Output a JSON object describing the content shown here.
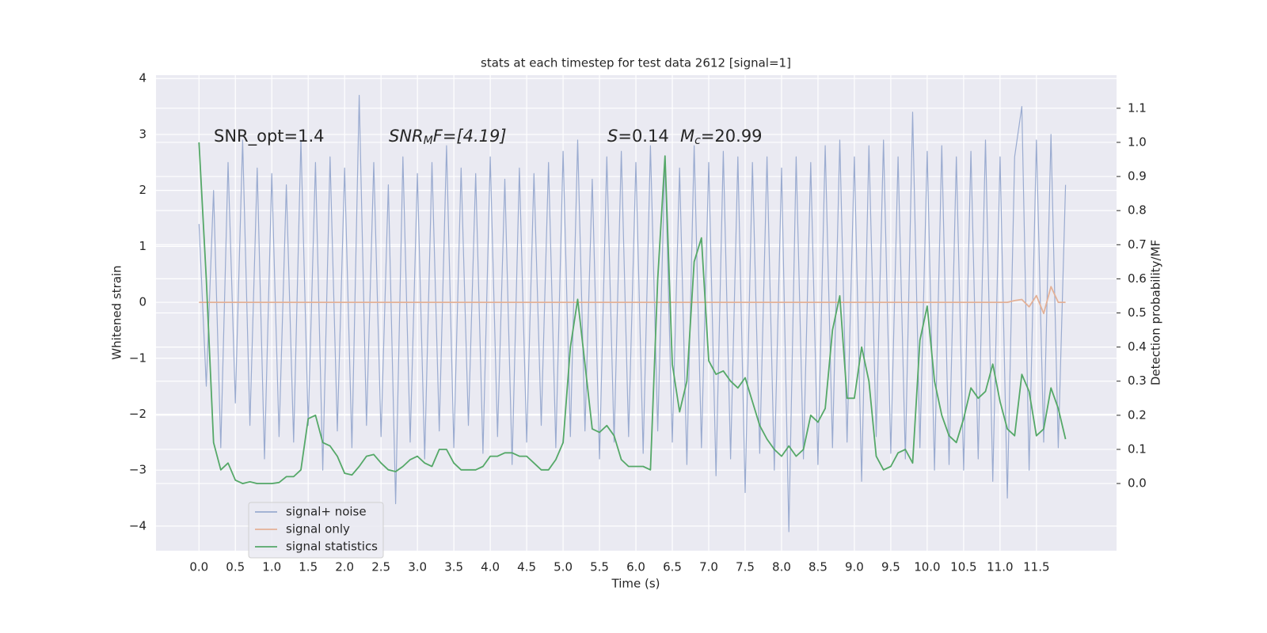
{
  "chart_data": {
    "type": "line",
    "title": "stats at each timestep for test data 2612 [signal=1]",
    "xlabel": "Time (s)",
    "ylabel": "Whitened strain",
    "y2label": "Detection probability/MF",
    "annotations": [
      [
        "SNR_opt=1.4"
      ],
      [
        "SNR",
        "M",
        "F=[4.19]"
      ],
      [
        "S",
        "=0.14"
      ],
      [
        "M",
        "c",
        "=20.99"
      ]
    ],
    "grid": true,
    "legend": "lower left",
    "xlim": [
      -0.59,
      12.6
    ],
    "ylim": [
      -4.44,
      4.06
    ],
    "y2lim": [
      -0.197,
      1.197
    ],
    "xticks": [
      {
        "value": 0,
        "label": "0.0"
      },
      0.5,
      {
        "value": 1,
        "label": "1.0"
      },
      1.5,
      {
        "value": 2,
        "label": "2.0"
      },
      2.5,
      {
        "value": 3,
        "label": "3.0"
      },
      3.5,
      {
        "value": 4,
        "label": "4.0"
      },
      4.5,
      {
        "value": 5,
        "label": "5.0"
      },
      5.5,
      {
        "value": 6,
        "label": "6.0"
      },
      6.5,
      {
        "value": 7,
        "label": "7.0"
      },
      7.5,
      {
        "value": 8,
        "label": "8.0"
      },
      8.5,
      {
        "value": 9,
        "label": "9.0"
      },
      9.5,
      {
        "value": 10,
        "label": "10.0"
      },
      10.5,
      {
        "value": 11,
        "label": "11.0"
      },
      11.5
    ],
    "yticks": [
      {
        "value": -4,
        "label": "−4"
      },
      {
        "value": -3,
        "label": "−3"
      },
      {
        "value": -2,
        "label": "−2"
      },
      {
        "value": -1,
        "label": "−1"
      },
      0,
      1,
      2,
      3,
      4
    ],
    "y2ticks": [
      {
        "value": 0,
        "label": "0.0"
      },
      0.1,
      0.2,
      0.3,
      0.4,
      0.5,
      0.6,
      0.7,
      0.8,
      0.9,
      {
        "value": 1,
        "label": "1.0"
      },
      1.1
    ],
    "x": [
      0,
      0.1,
      0.2,
      0.3,
      0.4,
      0.5,
      0.6,
      0.7,
      0.8,
      0.9,
      1,
      1.1,
      1.2,
      1.3,
      1.4,
      1.5,
      1.6,
      1.7,
      1.8,
      1.9,
      2,
      2.1,
      2.2,
      2.3,
      2.4,
      2.5,
      2.6,
      2.7,
      2.8,
      2.9,
      3,
      3.1,
      3.2,
      3.3,
      3.4,
      3.5,
      3.6,
      3.7,
      3.8,
      3.9,
      4,
      4.1,
      4.2,
      4.3,
      4.4,
      4.5,
      4.6,
      4.7,
      4.8,
      4.9,
      5,
      5.1,
      5.2,
      5.3,
      5.4,
      5.5,
      5.6,
      5.7,
      5.8,
      5.9,
      6,
      6.1,
      6.2,
      6.3,
      6.4,
      6.5,
      6.6,
      6.7,
      6.8,
      6.9,
      7,
      7.1,
      7.2,
      7.3,
      7.4,
      7.5,
      7.6,
      7.7,
      7.8,
      7.9,
      8,
      8.1,
      8.2,
      8.3,
      8.4,
      8.5,
      8.6,
      8.7,
      8.8,
      8.9,
      9,
      9.1,
      9.2,
      9.3,
      9.4,
      9.5,
      9.6,
      9.7,
      9.8,
      9.9,
      10,
      10.1,
      10.2,
      10.3,
      10.4,
      10.5,
      10.6,
      10.7,
      10.8,
      10.9,
      11,
      11.1,
      11.2,
      11.3,
      11.4,
      11.5,
      11.6,
      11.7,
      11.8,
      11.9
    ],
    "series": [
      {
        "name": "signal+ noise",
        "color": "#9aabd0",
        "values": [
          1.4,
          -1.5,
          2.0,
          -2.6,
          2.5,
          -1.8,
          2.9,
          -2.2,
          2.4,
          -2.8,
          2.3,
          -2.4,
          2.1,
          -2.5,
          2.9,
          -2.2,
          2.5,
          -3.0,
          2.6,
          -2.3,
          2.4,
          -2.6,
          3.7,
          -2.2,
          2.5,
          -2.4,
          2.1,
          -3.6,
          2.6,
          -2.5,
          2.3,
          -2.8,
          2.5,
          -2.3,
          2.8,
          -2.6,
          2.4,
          -2.2,
          2.3,
          -2.7,
          2.6,
          -2.4,
          2.2,
          -2.9,
          2.4,
          -2.5,
          2.3,
          -2.2,
          2.5,
          -2.6,
          2.7,
          -2.4,
          2.9,
          -2.3,
          2.2,
          -2.8,
          2.6,
          -2.5,
          2.7,
          -2.4,
          2.5,
          -2.7,
          2.8,
          -2.3,
          2.6,
          -2.5,
          2.4,
          -2.9,
          2.8,
          -2.6,
          2.5,
          -3.1,
          2.7,
          -2.8,
          2.6,
          -3.4,
          2.5,
          -2.7,
          2.6,
          -3.0,
          2.4,
          -4.1,
          2.6,
          -2.8,
          2.5,
          -2.9,
          2.8,
          -2.6,
          2.9,
          -2.5,
          2.6,
          -3.2,
          2.8,
          -2.4,
          2.9,
          -2.7,
          2.6,
          -2.8,
          3.4,
          -2.6,
          2.7,
          -3.0,
          2.8,
          -2.9,
          2.6,
          -3.0,
          2.7,
          -2.8,
          2.9,
          -3.2,
          2.6,
          -3.5,
          2.6,
          3.5,
          -3.0,
          2.9,
          -2.5,
          3.0,
          -2.6,
          2.1
        ]
      },
      {
        "name": "signal only",
        "color": "#e4b197",
        "values": [
          0,
          0,
          0,
          0,
          0,
          0,
          0,
          0,
          0,
          0,
          0,
          0,
          0,
          0,
          0,
          0,
          0,
          0,
          0,
          0,
          0,
          0,
          0,
          0,
          0,
          0,
          0,
          0,
          0,
          0,
          0,
          0,
          0,
          0,
          0,
          0,
          0,
          0,
          0,
          0,
          0,
          0,
          0,
          0,
          0,
          0,
          0,
          0,
          0,
          0,
          0,
          0,
          0,
          0,
          0,
          0,
          0,
          0,
          0,
          0,
          0,
          0,
          0,
          0,
          0,
          0,
          0,
          0,
          0,
          0,
          0,
          0,
          0,
          0,
          0,
          0,
          0,
          0,
          0,
          0,
          0,
          0,
          0,
          0,
          0,
          0,
          0,
          0,
          0,
          0,
          0,
          0,
          0,
          0,
          0,
          0,
          0,
          0,
          0,
          0,
          0,
          0,
          0,
          0,
          0,
          0,
          0,
          0,
          0,
          0,
          0,
          0,
          0.03,
          0.05,
          -0.08,
          0.12,
          -0.2,
          0.28,
          0,
          0
        ]
      },
      {
        "name": "signal statistics",
        "color": "#55a868",
        "axis": "y2",
        "values": [
          1.0,
          0.6,
          0.12,
          0.04,
          0.06,
          0.01,
          0.0,
          0.005,
          0.0,
          0.0,
          0.0,
          0.003,
          0.02,
          0.02,
          0.04,
          0.19,
          0.2,
          0.12,
          0.11,
          0.08,
          0.03,
          0.025,
          0.05,
          0.08,
          0.085,
          0.06,
          0.04,
          0.035,
          0.05,
          0.07,
          0.08,
          0.06,
          0.05,
          0.1,
          0.1,
          0.06,
          0.04,
          0.04,
          0.04,
          0.05,
          0.08,
          0.08,
          0.09,
          0.09,
          0.08,
          0.08,
          0.06,
          0.04,
          0.04,
          0.07,
          0.12,
          0.4,
          0.54,
          0.35,
          0.16,
          0.15,
          0.17,
          0.14,
          0.07,
          0.05,
          0.05,
          0.05,
          0.04,
          0.6,
          0.96,
          0.35,
          0.21,
          0.3,
          0.65,
          0.72,
          0.36,
          0.32,
          0.33,
          0.3,
          0.28,
          0.31,
          0.24,
          0.17,
          0.13,
          0.1,
          0.08,
          0.11,
          0.08,
          0.1,
          0.2,
          0.18,
          0.22,
          0.45,
          0.55,
          0.25,
          0.25,
          0.4,
          0.3,
          0.08,
          0.04,
          0.05,
          0.09,
          0.1,
          0.06,
          0.42,
          0.52,
          0.3,
          0.2,
          0.14,
          0.12,
          0.19,
          0.28,
          0.25,
          0.27,
          0.35,
          0.24,
          0.16,
          0.14,
          0.32,
          0.27,
          0.14,
          0.16,
          0.28,
          0.22,
          0.13
        ]
      }
    ]
  }
}
